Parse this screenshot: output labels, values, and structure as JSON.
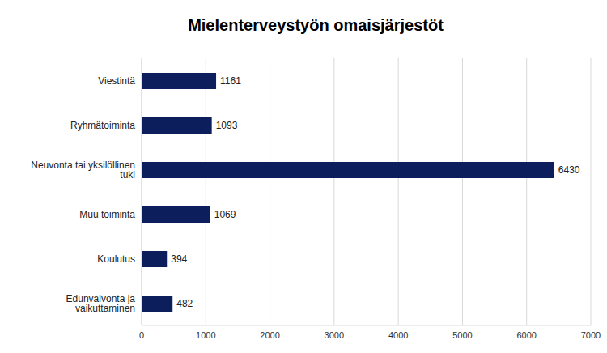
{
  "chart_data": {
    "type": "bar",
    "title": "Mielenterveystyön omaisjärjestöt",
    "orientation": "horizontal",
    "categories": [
      "Viestintä",
      "Ryhmätoiminta",
      "Neuvonta tai yksilöllinen tuki",
      "Muu toiminta",
      "Koulutus",
      "Edunvalvonta ja vaikuttaminen"
    ],
    "values": [
      1161,
      1093,
      6430,
      1069,
      394,
      482
    ],
    "color": "#0c1f5c",
    "xlim": [
      0,
      7000
    ],
    "xticks": [
      0,
      1000,
      2000,
      3000,
      4000,
      5000,
      6000,
      7000
    ],
    "grid": true,
    "data_labels": true
  }
}
